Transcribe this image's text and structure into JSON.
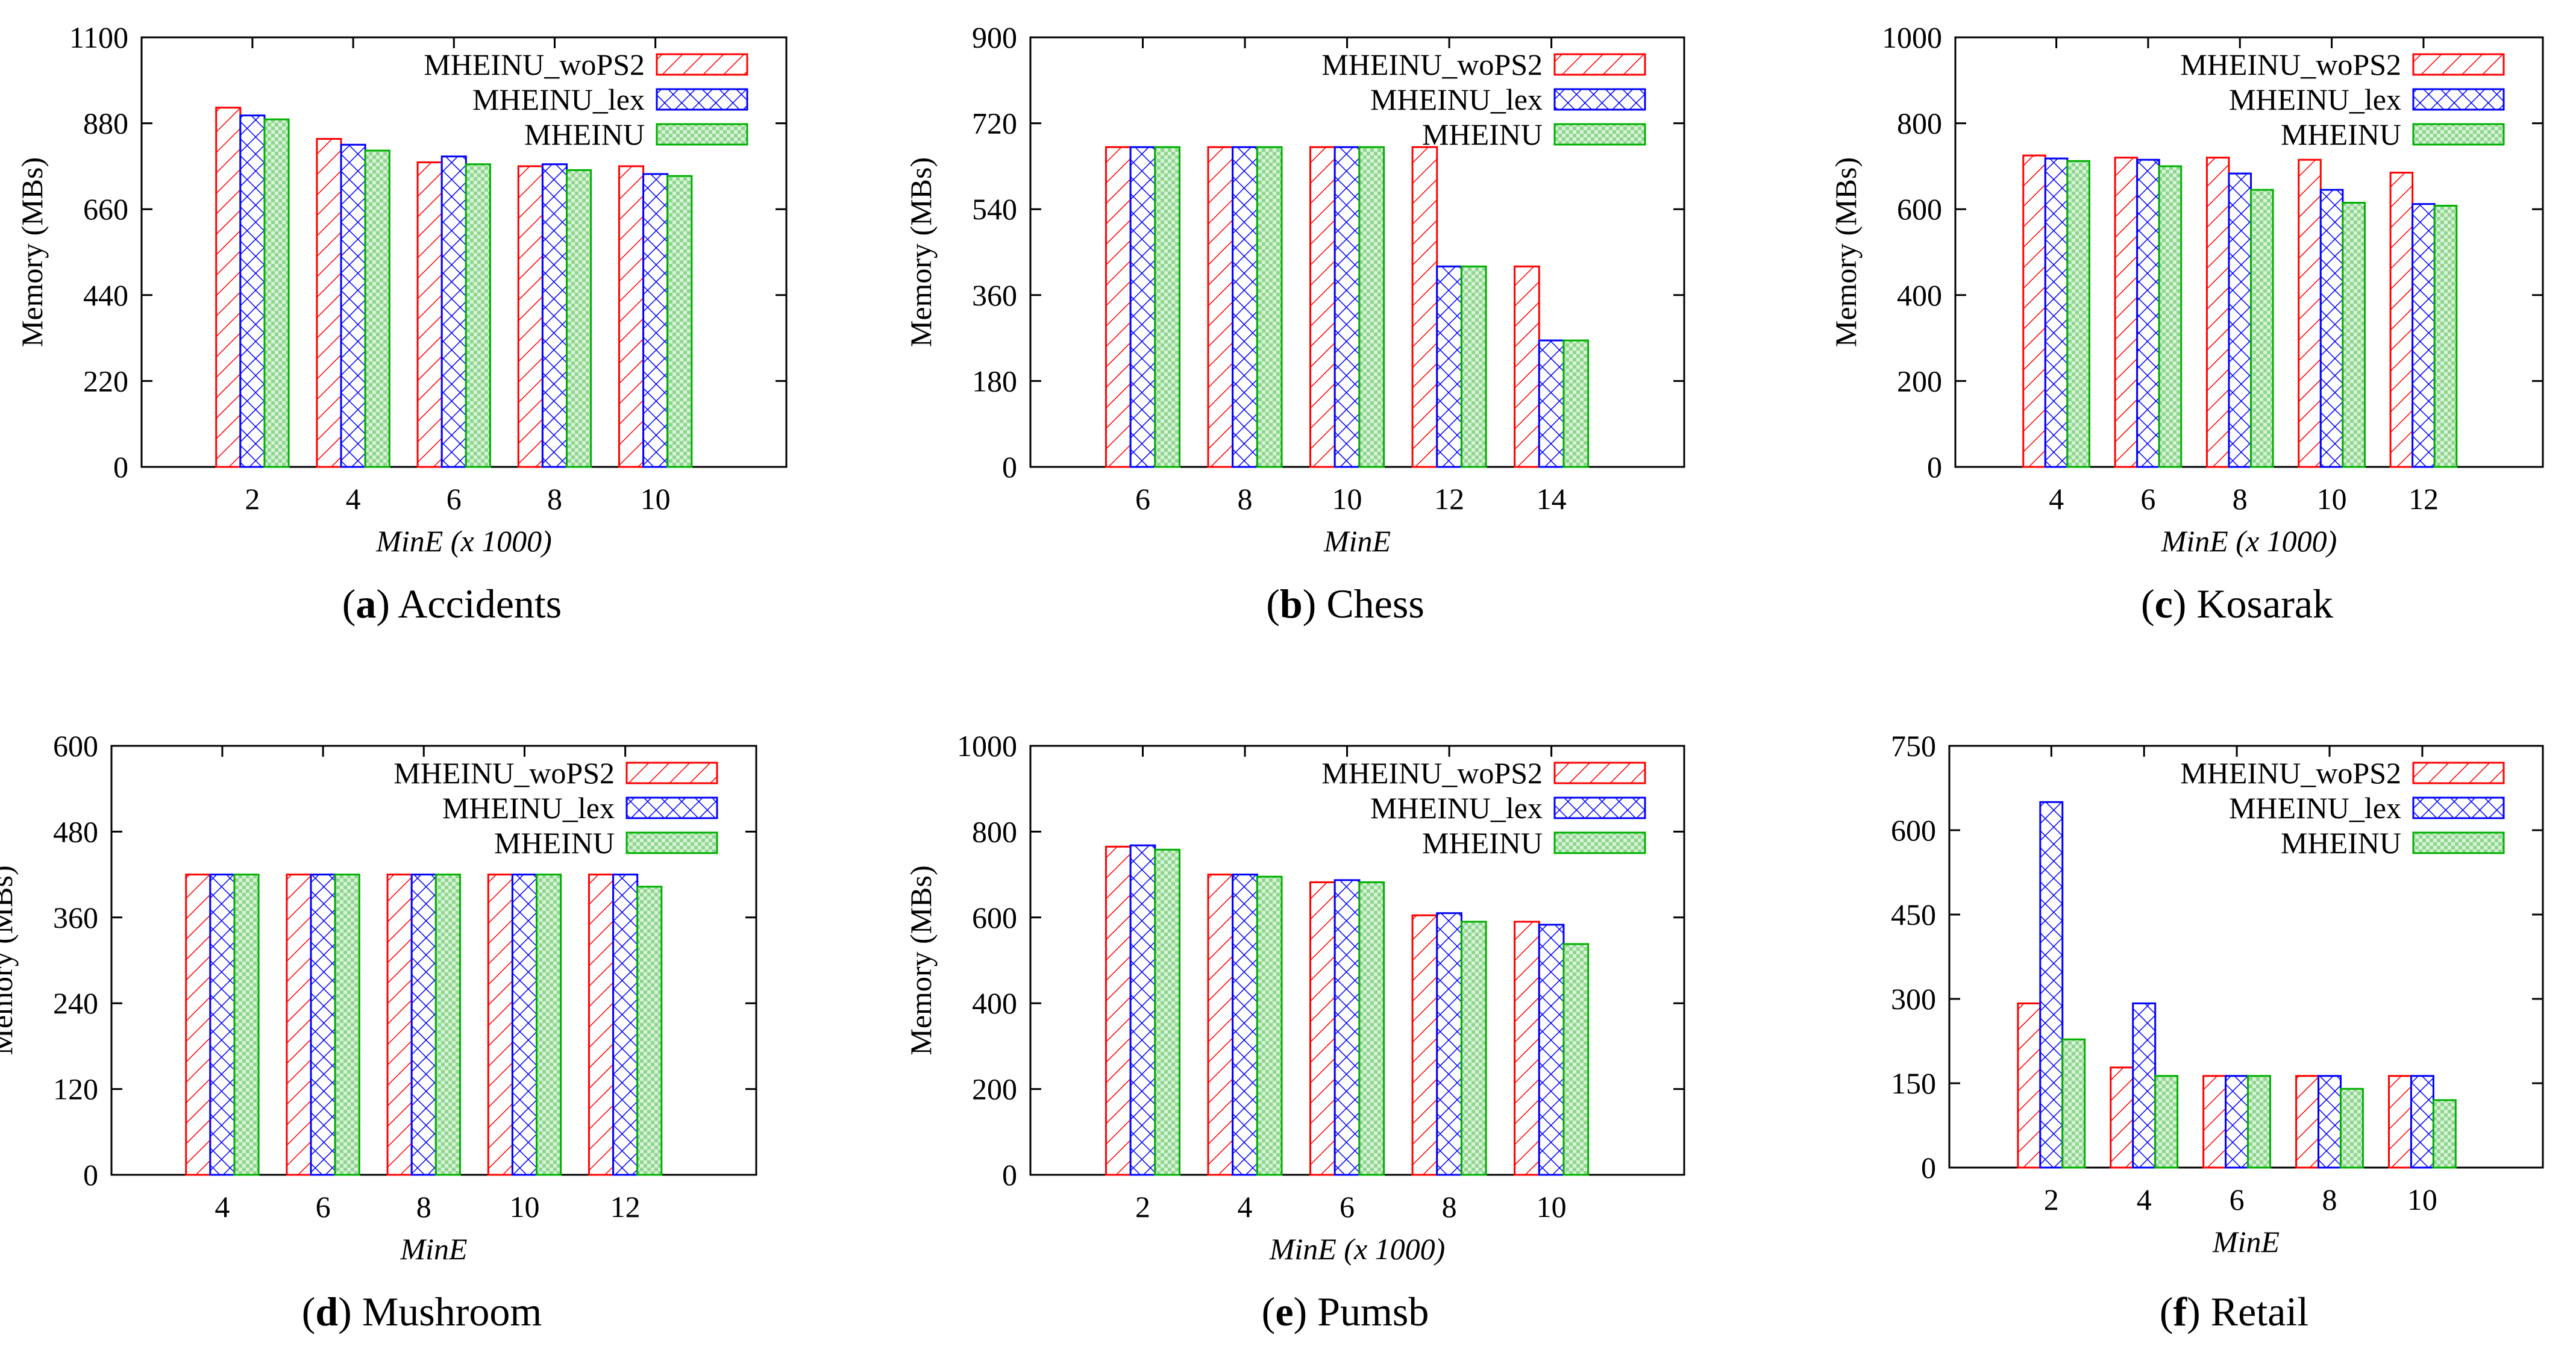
{
  "legend": [
    "MHEINU_woPS2",
    "MHEINU_lex",
    "MHEINU"
  ],
  "colors": {
    "MHEINU_woPS2": "#ff0000",
    "MHEINU_lex": "#0000ff",
    "MHEINU": "#00b000",
    "MHEINU_fill": "#d7f2d7"
  },
  "chart_data": [
    {
      "type": "bar",
      "panel": "a",
      "caption_letter": "a",
      "caption_name": "Accidents",
      "ylabel": "Memory (MBs)",
      "xlabel": "MinE (x 1000)",
      "categories": [
        "2",
        "4",
        "6",
        "8",
        "10"
      ],
      "ylim": [
        0,
        1100
      ],
      "yticks": [
        0,
        220,
        440,
        660,
        880,
        1100
      ],
      "legend_position": "top-right",
      "series": [
        {
          "name": "MHEINU_woPS2",
          "values": [
            920,
            840,
            780,
            770,
            770
          ]
        },
        {
          "name": "MHEINU_lex",
          "values": [
            900,
            825,
            795,
            775,
            750
          ]
        },
        {
          "name": "MHEINU",
          "values": [
            890,
            810,
            775,
            760,
            745
          ]
        }
      ]
    },
    {
      "type": "bar",
      "panel": "b",
      "caption_letter": "b",
      "caption_name": "Chess",
      "ylabel": "Memory (MBs)",
      "xlabel": "MinE",
      "categories": [
        "6",
        "8",
        "10",
        "12",
        "14"
      ],
      "ylim": [
        0,
        900
      ],
      "yticks": [
        0,
        180,
        360,
        540,
        720,
        900
      ],
      "legend_position": "top-right",
      "series": [
        {
          "name": "MHEINU_woPS2",
          "values": [
            670,
            670,
            670,
            670,
            420
          ]
        },
        {
          "name": "MHEINU_lex",
          "values": [
            670,
            670,
            670,
            420,
            265
          ]
        },
        {
          "name": "MHEINU",
          "values": [
            670,
            670,
            670,
            420,
            265
          ]
        }
      ]
    },
    {
      "type": "bar",
      "panel": "c",
      "caption_letter": "c",
      "caption_name": "Kosarak",
      "ylabel": "Memory (MBs)",
      "xlabel": "MinE (x 1000)",
      "categories": [
        "4",
        "6",
        "8",
        "10",
        "12"
      ],
      "ylim": [
        0,
        1000
      ],
      "yticks": [
        0,
        200,
        400,
        600,
        800,
        1000
      ],
      "legend_position": "top-right",
      "series": [
        {
          "name": "MHEINU_woPS2",
          "values": [
            725,
            720,
            720,
            715,
            685
          ]
        },
        {
          "name": "MHEINU_lex",
          "values": [
            718,
            715,
            683,
            645,
            612
          ]
        },
        {
          "name": "MHEINU",
          "values": [
            712,
            700,
            645,
            615,
            608
          ]
        }
      ]
    },
    {
      "type": "bar",
      "panel": "d",
      "caption_letter": "d",
      "caption_name": "Mushroom",
      "ylabel": "Memory (MBs)",
      "xlabel": "MinE",
      "categories": [
        "4",
        "6",
        "8",
        "10",
        "12"
      ],
      "ylim": [
        0,
        600
      ],
      "yticks": [
        0,
        120,
        240,
        360,
        480,
        600
      ],
      "legend_position": "top-right",
      "series": [
        {
          "name": "MHEINU_woPS2",
          "values": [
            420,
            420,
            420,
            420,
            420
          ]
        },
        {
          "name": "MHEINU_lex",
          "values": [
            420,
            420,
            420,
            420,
            420
          ]
        },
        {
          "name": "MHEINU",
          "values": [
            420,
            420,
            420,
            420,
            403
          ]
        }
      ]
    },
    {
      "type": "bar",
      "panel": "e",
      "caption_letter": "e",
      "caption_name": "Pumsb",
      "ylabel": "Memory (MBs)",
      "xlabel": "MinE (x 1000)",
      "categories": [
        "2",
        "4",
        "6",
        "8",
        "10"
      ],
      "ylim": [
        0,
        1000
      ],
      "yticks": [
        0,
        200,
        400,
        600,
        800,
        1000
      ],
      "legend_position": "top-right",
      "series": [
        {
          "name": "MHEINU_woPS2",
          "values": [
            765,
            700,
            682,
            605,
            590
          ]
        },
        {
          "name": "MHEINU_lex",
          "values": [
            768,
            700,
            687,
            610,
            583
          ]
        },
        {
          "name": "MHEINU",
          "values": [
            758,
            695,
            682,
            590,
            538
          ]
        }
      ]
    },
    {
      "type": "bar",
      "panel": "f",
      "caption_letter": "f",
      "caption_name": "Retail",
      "ylabel": "",
      "xlabel": "MinE",
      "categories": [
        "2",
        "4",
        "6",
        "8",
        "10"
      ],
      "ylim": [
        0,
        750
      ],
      "yticks": [
        0,
        150,
        300,
        450,
        600,
        750
      ],
      "legend_position": "top-right",
      "series": [
        {
          "name": "MHEINU_woPS2",
          "values": [
            292,
            178,
            163,
            163,
            163
          ]
        },
        {
          "name": "MHEINU_lex",
          "values": [
            650,
            292,
            163,
            163,
            163
          ]
        },
        {
          "name": "MHEINU",
          "values": [
            228,
            163,
            163,
            140,
            120
          ]
        }
      ]
    }
  ]
}
